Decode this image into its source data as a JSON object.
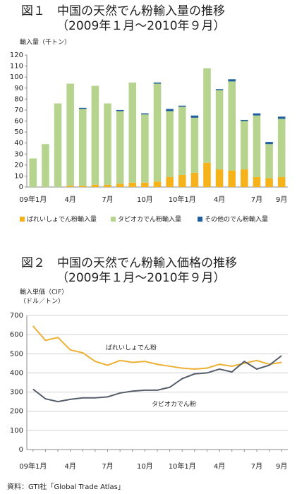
{
  "chart_data": [
    {
      "type": "bar",
      "stacked": true,
      "title": "図１　中国の天然でん粉輸入量の推移",
      "subtitle": "（2009年１月～2010年９月）",
      "ylabel": "輸入量（千トン）",
      "categories": [
        "09年1月",
        null,
        null,
        "4月",
        null,
        null,
        "7月",
        null,
        null,
        "10月",
        null,
        null,
        "10年1月",
        null,
        null,
        "4月",
        null,
        null,
        "7月",
        null,
        "9月"
      ],
      "series": [
        {
          "name": "ばれいしょでん粉輸入量",
          "color": "#f5b21b",
          "values": [
            0,
            0,
            0,
            1,
            1,
            2,
            2,
            3,
            4,
            4,
            5,
            9,
            11,
            13,
            22,
            16,
            15,
            16,
            9,
            8,
            9
          ]
        },
        {
          "name": "タピオカでん粉輸入量",
          "color": "#b7d48e",
          "values": [
            26,
            39,
            76,
            93,
            70,
            90,
            74,
            66,
            91,
            62,
            89,
            60,
            62,
            50,
            86,
            72,
            81,
            44,
            56,
            31,
            53
          ]
        },
        {
          "name": "その他のでん粉輸入量",
          "color": "#1f5f9f",
          "values": [
            0,
            0,
            0,
            0,
            1,
            0,
            0,
            1,
            0,
            1,
            1,
            2,
            1,
            2,
            0,
            1,
            2,
            1,
            2,
            2,
            2
          ]
        }
      ],
      "ylim": [
        0,
        120
      ],
      "yticks": [
        0,
        10,
        20,
        30,
        40,
        50,
        60,
        70,
        80,
        90,
        100,
        110,
        120
      ],
      "grid": false,
      "legend": "bottom"
    },
    {
      "type": "line",
      "title": "図２　中国の天然でん粉輸入価格の推移",
      "subtitle": "（2009年１月～2010年９月）",
      "ylabel": "輸入単価（CIF）",
      "yunit": "（ドル／トン）",
      "categories": [
        "09年1月",
        null,
        null,
        "4月",
        null,
        null,
        "7月",
        null,
        null,
        "10月",
        null,
        null,
        "10年1月",
        null,
        null,
        "4月",
        null,
        null,
        "7月",
        null,
        "9月"
      ],
      "series": [
        {
          "name": "ばれいしょでん粉",
          "color": "#eeb034",
          "values": [
            645,
            570,
            585,
            520,
            505,
            460,
            440,
            465,
            455,
            460,
            445,
            435,
            425,
            420,
            425,
            445,
            435,
            450,
            465,
            445,
            455
          ]
        },
        {
          "name": "タピオカでん粉",
          "color": "#555e6a",
          "values": [
            315,
            265,
            250,
            262,
            270,
            270,
            275,
            295,
            305,
            310,
            310,
            325,
            370,
            395,
            400,
            420,
            405,
            460,
            420,
            440,
            490
          ]
        }
      ],
      "ylim": [
        0,
        700
      ],
      "yticks": [
        0,
        100,
        200,
        300,
        400,
        500,
        600,
        700
      ],
      "grid": true
    }
  ],
  "source": "資料：GTI社「Global Trade Atlas」"
}
